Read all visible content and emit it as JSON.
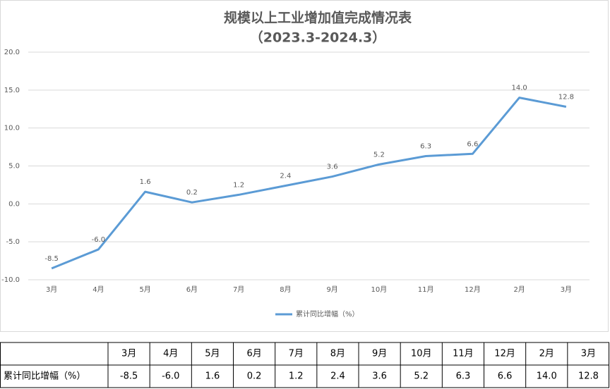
{
  "chart_data": {
    "type": "line",
    "title": "规模以上工业增加值完成情况表",
    "subtitle": "（2023.3-2024.3）",
    "categories": [
      "3月",
      "4月",
      "5月",
      "6月",
      "7月",
      "8月",
      "9月",
      "10月",
      "11月",
      "12月",
      "2月",
      "3月"
    ],
    "series": [
      {
        "name": "累计同比增幅（%）",
        "color": "#5b9bd5",
        "values": [
          -8.5,
          -6.0,
          1.6,
          0.2,
          1.2,
          2.4,
          3.6,
          5.2,
          6.3,
          6.6,
          14.0,
          12.8
        ],
        "value_labels": [
          "-8.5",
          "-6.0",
          "1.6",
          "0.2",
          "1.2",
          "2.4",
          "3.6",
          "5.2",
          "6.3",
          "6.6",
          "14.0",
          "12.8"
        ]
      }
    ],
    "ylim": [
      -10,
      20
    ],
    "yticks": [
      {
        "value": -10,
        "label": "-10.0"
      },
      {
        "value": -5,
        "label": "-5.0"
      },
      {
        "value": 0,
        "label": "0.0"
      },
      {
        "value": 5,
        "label": "5.0"
      },
      {
        "value": 10,
        "label": "10.0"
      },
      {
        "value": 15,
        "label": "15.0"
      },
      {
        "value": 20,
        "label": "20.0"
      }
    ],
    "grid": true,
    "legend": "bottom"
  }
}
